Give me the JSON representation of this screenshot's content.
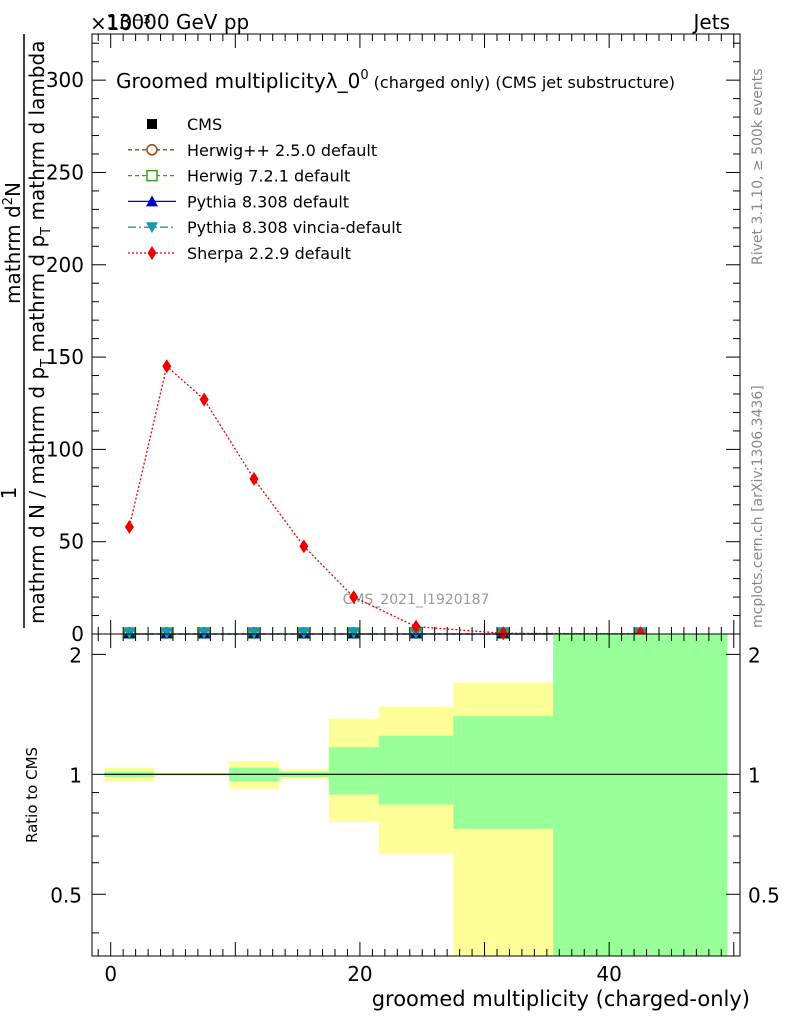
{
  "header": {
    "exponent_label": "×10⁻³",
    "beam_label": "13000 GeV pp",
    "category_label": "Jets"
  },
  "side_labels": {
    "rivet": "Rivet 3.1.10, ≥ 500k events",
    "mcplots": "mcplots.cern.ch [arXiv:1306.3436]"
  },
  "chart_data": [
    {
      "type": "line",
      "title": "Groomed multiplicity λ_0⁰ (charged only) (CMS jet substructure)",
      "title_main": "Groomed multiplicityλ_0",
      "title_sup": "0",
      "title_rest": " (charged only) (CMS jet substructure)",
      "watermark": "CMS_2021_I1920187",
      "ylabel": {
        "prefix": "1",
        "numerator": "mathrm d",
        "numerator_sup": "2",
        "numerator_tail": "N",
        "frac_outer_denominator": "mathrm d N / mathrm d p",
        "frac_outer_sub": "T",
        "frac_inner_denominator": "mathrm d p",
        "frac_inner_sub": "T",
        "frac_inner_tail": " mathrm d lambda"
      },
      "xlim": [
        -1.5,
        50.5
      ],
      "ylim": [
        0,
        325
      ],
      "y_ticks": [
        0,
        50,
        100,
        150,
        200,
        250,
        300
      ],
      "x": [
        1.5,
        4.5,
        7.5,
        11.5,
        15.5,
        19.5,
        24.5,
        31.5,
        42.5
      ],
      "series": [
        {
          "name": "CMS",
          "values": [
            0,
            0,
            0,
            0,
            0,
            0,
            0,
            0,
            0
          ],
          "color": "#000000",
          "marker": "square"
        },
        {
          "name": "Herwig++ 2.5.0 default",
          "values": [
            0,
            0,
            0,
            0,
            0,
            0,
            0,
            0,
            0
          ],
          "color": "#8b4513",
          "marker": "open-circle"
        },
        {
          "name": "Herwig 7.2.1 default",
          "values": [
            0,
            0,
            0,
            0,
            0,
            0,
            0,
            0,
            0
          ],
          "color": "#3a9a1a",
          "marker": "open-square"
        },
        {
          "name": "Pythia 8.308 default",
          "values": [
            0,
            0,
            0,
            0,
            0,
            0,
            0,
            0,
            0
          ],
          "color": "#0000cc",
          "marker": "triangle-up"
        },
        {
          "name": "Pythia 8.308 vincia-default",
          "values": [
            0,
            0,
            0,
            0,
            0,
            0,
            0,
            0,
            0
          ],
          "color": "#1a9aaa",
          "marker": "triangle-down"
        },
        {
          "name": "Sherpa 2.2.9 default",
          "values": [
            58,
            145,
            127,
            84,
            47.5,
            20,
            4,
            0.4,
            0
          ],
          "color": "#ee0000",
          "marker": "diamond"
        }
      ]
    },
    {
      "type": "area",
      "ylabel": "Ratio to CMS",
      "xlabel": "groomed multiplicity (charged-only)",
      "xlim": [
        -1.5,
        50.5
      ],
      "ylim": [
        0.35,
        2.25
      ],
      "y_ticks": [
        0.5,
        1,
        2
      ],
      "x_ticks": [
        0,
        20,
        40
      ],
      "reference_line": 1,
      "bins": [
        {
          "x0": -0.5,
          "x1": 3.5,
          "stat_low": 0.985,
          "stat_high": 1.015,
          "tot_low": 0.96,
          "tot_high": 1.04
        },
        {
          "x0": 3.5,
          "x1": 9.5,
          "stat_low": 0.995,
          "stat_high": 1.005,
          "tot_low": 0.99,
          "tot_high": 1.01
        },
        {
          "x0": 9.5,
          "x1": 13.5,
          "stat_low": 0.96,
          "stat_high": 1.04,
          "tot_low": 0.92,
          "tot_high": 1.08
        },
        {
          "x0": 13.5,
          "x1": 17.5,
          "stat_low": 0.985,
          "stat_high": 1.015,
          "tot_low": 0.97,
          "tot_high": 1.03
        },
        {
          "x0": 17.5,
          "x1": 21.5,
          "stat_low": 0.89,
          "stat_high": 1.17,
          "tot_low": 0.76,
          "tot_high": 1.38
        },
        {
          "x0": 21.5,
          "x1": 27.5,
          "stat_low": 0.84,
          "stat_high": 1.25,
          "tot_low": 0.63,
          "tot_high": 1.48
        },
        {
          "x0": 27.5,
          "x1": 35.5,
          "stat_low": 0.73,
          "stat_high": 1.4,
          "tot_low": 0.35,
          "tot_high": 1.7
        },
        {
          "x0": 35.5,
          "x1": 49.5,
          "stat_low": 0.35,
          "stat_high": 2.25,
          "tot_low": 0.35,
          "tot_high": 2.25
        }
      ],
      "stat_color": "#99ff99",
      "tot_color": "#ffff99"
    }
  ]
}
